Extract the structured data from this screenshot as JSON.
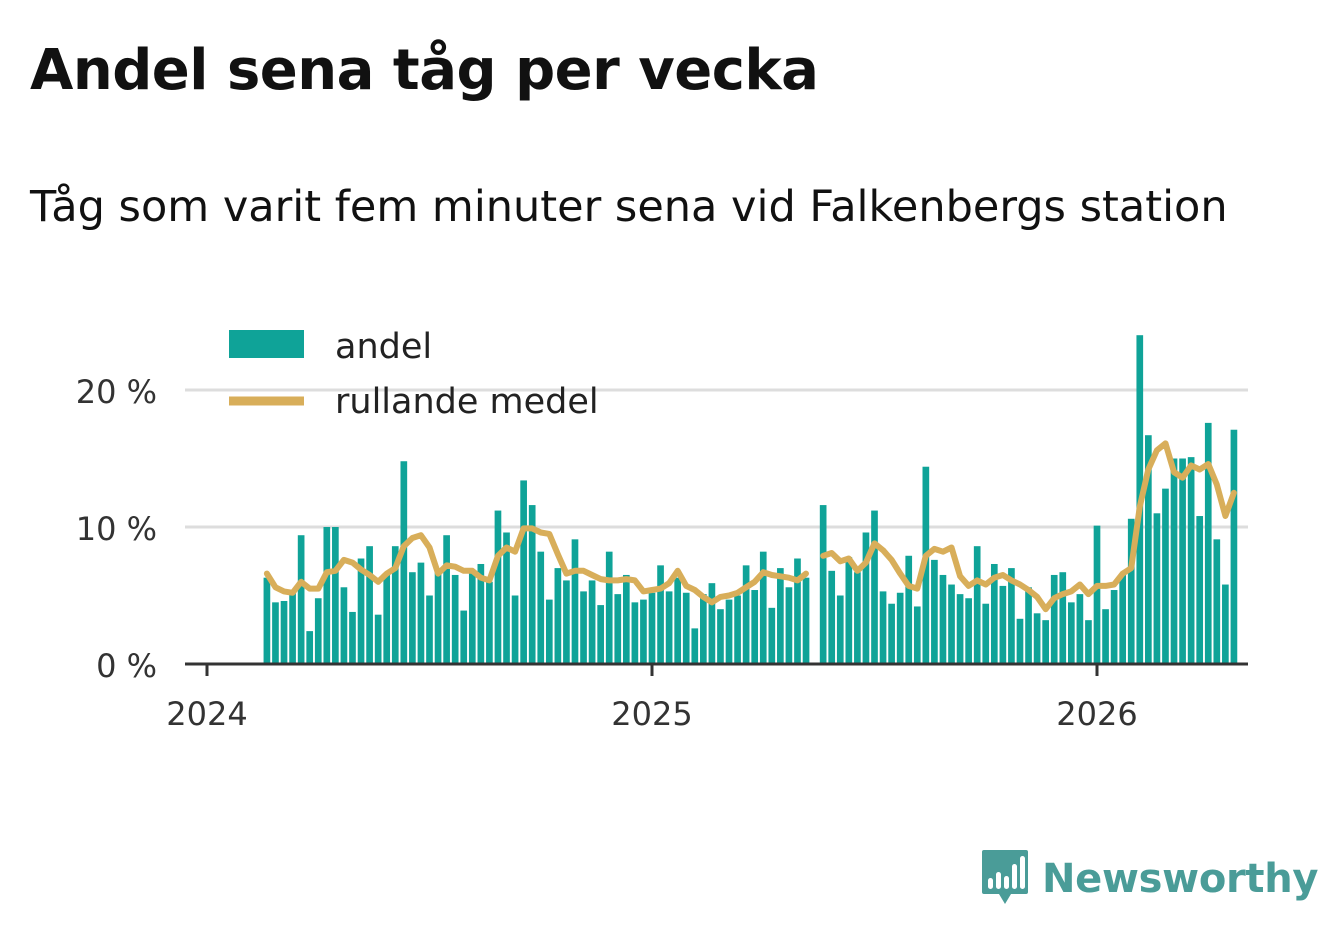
{
  "title": "Andel sena tåg per vecka",
  "subtitle": "Tåg som varit fem minuter sena vid Falkenbergs station",
  "brand": {
    "name": "Newsworthy",
    "icon": "bar-chart-logo-icon",
    "color": "#4a9c98"
  },
  "colors": {
    "bar": "#0fa398",
    "line": "#d8ae5a",
    "grid": "#dddddd",
    "axis": "#333333"
  },
  "chart_data": {
    "type": "bar",
    "title": "Andel sena tåg per vecka",
    "subtitle": "Tåg som varit fem minuter sena vid Falkenbergs station",
    "xlabel": "",
    "ylabel": "",
    "ylim": [
      0,
      22
    ],
    "yticks": [
      0,
      10,
      20
    ],
    "ytick_labels": [
      "0 %",
      "10 %",
      "20 %"
    ],
    "xticks": [
      2024,
      2025,
      2026
    ],
    "xtick_labels": [
      "2024",
      "2025",
      "2026"
    ],
    "grid": true,
    "legend_position": "top-left",
    "start_year": 2024,
    "weeks_per_year": 52,
    "series": [
      {
        "name": "andel",
        "type": "bar",
        "start_week": 7,
        "values": [
          6.3,
          4.5,
          4.6,
          5.2,
          9.4,
          2.4,
          4.8,
          10.0,
          10.0,
          5.6,
          3.8,
          7.7,
          8.6,
          3.6,
          6.6,
          8.6,
          14.8,
          6.7,
          7.4,
          5.0,
          6.7,
          9.4,
          6.5,
          3.9,
          6.7,
          7.3,
          6.0,
          11.2,
          9.6,
          5.0,
          13.4,
          11.6,
          8.2,
          4.7,
          7.0,
          6.1,
          9.1,
          5.3,
          6.1,
          4.3,
          8.2,
          5.1,
          6.5,
          4.5,
          4.7,
          5.2,
          7.2,
          5.3,
          6.3,
          5.2,
          2.6,
          5.1,
          5.9,
          4.0,
          4.7,
          5.0,
          7.2,
          5.4,
          8.2,
          4.1,
          7.0,
          5.6,
          7.7,
          6.3,
          null,
          11.6,
          6.8,
          5.0,
          7.8,
          6.7,
          9.6,
          11.2,
          5.3,
          4.4,
          5.2,
          7.9,
          4.2,
          14.4,
          7.6,
          6.5,
          5.8,
          5.1,
          4.8,
          8.6,
          4.4,
          7.3,
          5.7,
          7.0,
          3.3,
          5.6,
          3.7,
          3.2,
          6.5,
          6.7,
          4.5,
          5.1,
          3.2,
          10.1,
          4.0,
          5.4,
          6.5,
          10.6,
          24.0,
          16.7,
          11.0,
          12.8,
          15.0,
          15.0,
          15.1,
          10.8,
          17.6,
          9.1,
          5.8,
          17.1
        ]
      },
      {
        "name": "rullande medel",
        "type": "line",
        "start_week": 7,
        "values": [
          6.6,
          5.6,
          5.3,
          5.2,
          6.0,
          5.5,
          5.5,
          6.7,
          6.8,
          7.6,
          7.4,
          6.9,
          6.5,
          6.0,
          6.6,
          7.0,
          8.6,
          9.2,
          9.4,
          8.5,
          6.6,
          7.2,
          7.1,
          6.8,
          6.8,
          6.3,
          6.1,
          7.9,
          8.5,
          8.2,
          9.9,
          9.9,
          9.6,
          9.5,
          8.0,
          6.6,
          6.8,
          6.8,
          6.5,
          6.2,
          6.1,
          6.1,
          6.2,
          6.1,
          5.3,
          5.4,
          5.5,
          5.9,
          6.8,
          5.7,
          5.4,
          4.9,
          4.5,
          4.9,
          5.0,
          5.2,
          5.6,
          6.0,
          6.7,
          6.5,
          6.4,
          6.3,
          6.1,
          6.6,
          null,
          7.9,
          8.1,
          7.5,
          7.7,
          6.8,
          7.4,
          8.8,
          8.3,
          7.6,
          6.6,
          5.7,
          5.5,
          7.9,
          8.4,
          8.2,
          8.5,
          6.4,
          5.7,
          6.1,
          5.8,
          6.3,
          6.5,
          6.1,
          5.8,
          5.4,
          4.9,
          4.0,
          4.8,
          5.1,
          5.3,
          5.8,
          5.1,
          5.7,
          5.7,
          5.8,
          6.6,
          7.0,
          11.5,
          14.2,
          15.6,
          16.1,
          14.0,
          13.6,
          14.5,
          14.2,
          14.6,
          13.1,
          10.8,
          12.5
        ]
      }
    ]
  }
}
